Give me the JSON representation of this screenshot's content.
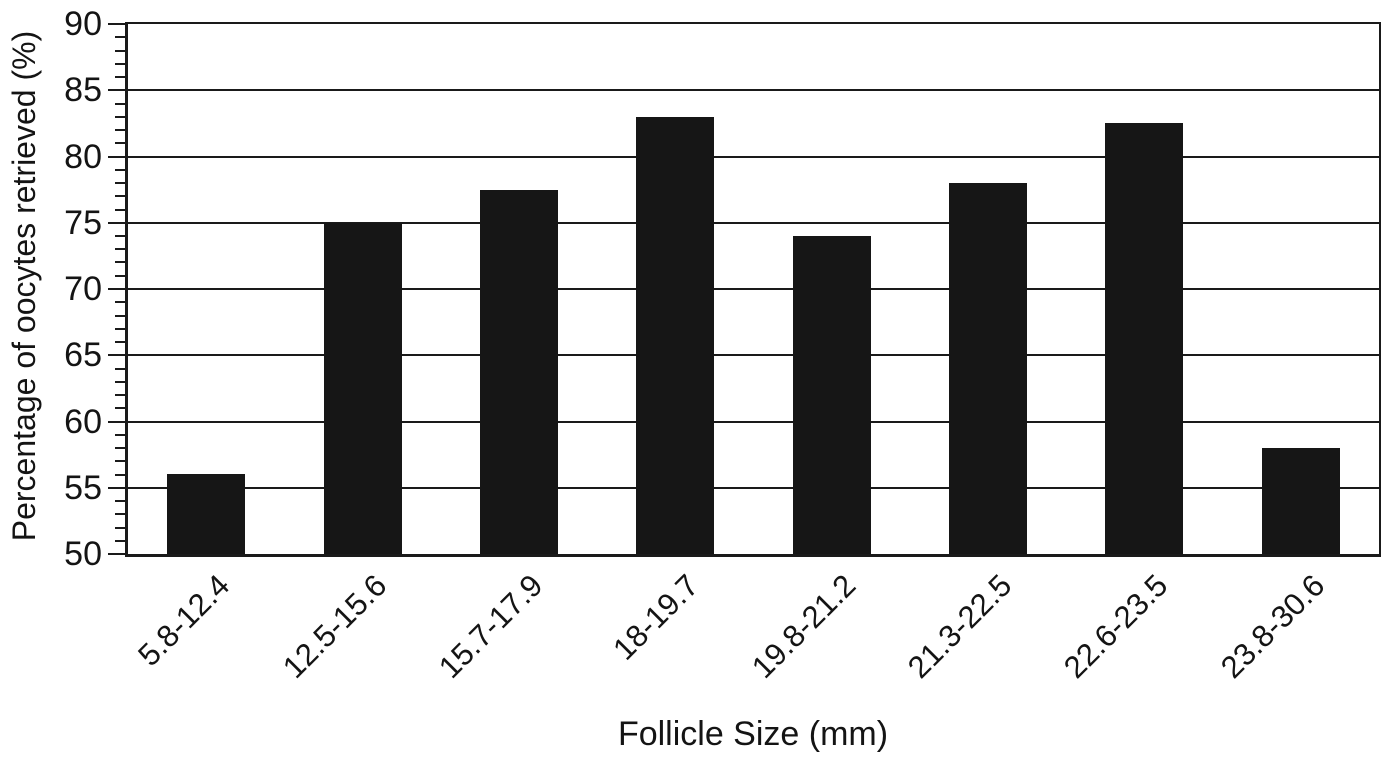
{
  "chart_data": {
    "type": "bar",
    "title": "",
    "xlabel": "Follicle Size (mm)",
    "ylabel": "Percentage of oocytes retrieved (%)",
    "categories": [
      "5.8-12.4",
      "12.5-15.6",
      "15.7-17.9",
      "18-19.7",
      "19.8-21.2",
      "21.3-22.5",
      "22.6-23.5",
      "23.8-30.6"
    ],
    "values": [
      56,
      75,
      77.5,
      83,
      74,
      78,
      82.5,
      58
    ],
    "ylim": [
      50,
      90
    ],
    "ytick_interval": 5,
    "yticks": [
      50,
      55,
      60,
      65,
      70,
      75,
      80,
      85,
      90
    ],
    "minor_tick_interval": 1,
    "grid": "horizontal-major",
    "legend": "none",
    "bar_color": "#161616",
    "line_color": "#1a1a1a",
    "text_color": "#141414",
    "background_color": "#ffffff"
  }
}
